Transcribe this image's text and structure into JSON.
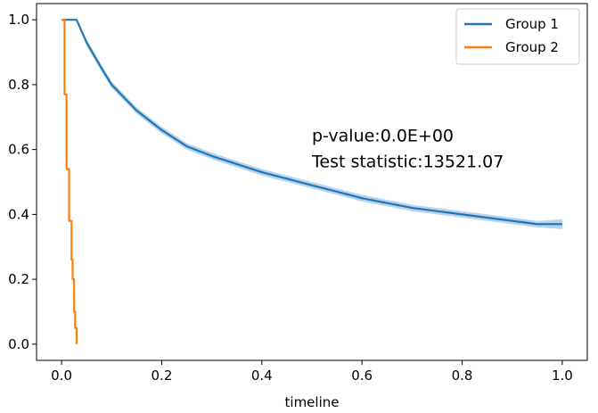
{
  "chart_data": {
    "type": "line",
    "title": "",
    "xlabel": "timeline",
    "ylabel": "",
    "xlim": [
      -0.05,
      1.05
    ],
    "ylim": [
      -0.05,
      1.05
    ],
    "x_ticks": [
      0.0,
      0.2,
      0.4,
      0.6,
      0.8,
      1.0
    ],
    "x_tick_labels": [
      "0.0",
      "0.2",
      "0.4",
      "0.6",
      "0.8",
      "1.0"
    ],
    "y_ticks": [
      0.0,
      0.2,
      0.4,
      0.6,
      0.8,
      1.0
    ],
    "y_tick_labels": [
      "0.0",
      "0.2",
      "0.4",
      "0.6",
      "0.8",
      "1.0"
    ],
    "grid": false,
    "legend_position": "top-right",
    "series": [
      {
        "name": "Group 1",
        "color": "#1f77b4",
        "band_color": "#a6c8e8",
        "step": false,
        "x": [
          0.0,
          0.03,
          0.05,
          0.08,
          0.1,
          0.15,
          0.2,
          0.25,
          0.3,
          0.4,
          0.5,
          0.6,
          0.7,
          0.8,
          0.9,
          0.95,
          1.0
        ],
        "y": [
          1.0,
          1.0,
          0.93,
          0.85,
          0.8,
          0.72,
          0.66,
          0.61,
          0.58,
          0.53,
          0.49,
          0.45,
          0.42,
          0.4,
          0.38,
          0.37,
          0.37
        ],
        "ci_lower": [
          1.0,
          1.0,
          0.92,
          0.84,
          0.79,
          0.71,
          0.65,
          0.6,
          0.57,
          0.52,
          0.48,
          0.44,
          0.41,
          0.39,
          0.37,
          0.36,
          0.355
        ],
        "ci_upper": [
          1.0,
          1.0,
          0.94,
          0.86,
          0.81,
          0.73,
          0.67,
          0.62,
          0.59,
          0.54,
          0.5,
          0.46,
          0.43,
          0.41,
          0.39,
          0.38,
          0.385
        ]
      },
      {
        "name": "Group 2",
        "color": "#ff7f0e",
        "step": true,
        "x": [
          0.0,
          0.005,
          0.006,
          0.008,
          0.01,
          0.012,
          0.015,
          0.018,
          0.02,
          0.022,
          0.025,
          0.027,
          0.03
        ],
        "y": [
          1.0,
          1.0,
          0.77,
          0.77,
          0.54,
          0.54,
          0.38,
          0.38,
          0.26,
          0.2,
          0.1,
          0.05,
          0.0
        ]
      }
    ],
    "annotations": [
      {
        "text": "p-value:0.0E+00",
        "x": 0.5,
        "y": 0.625
      },
      {
        "text": "Test statistic:13521.07",
        "x": 0.5,
        "y": 0.545
      }
    ]
  }
}
